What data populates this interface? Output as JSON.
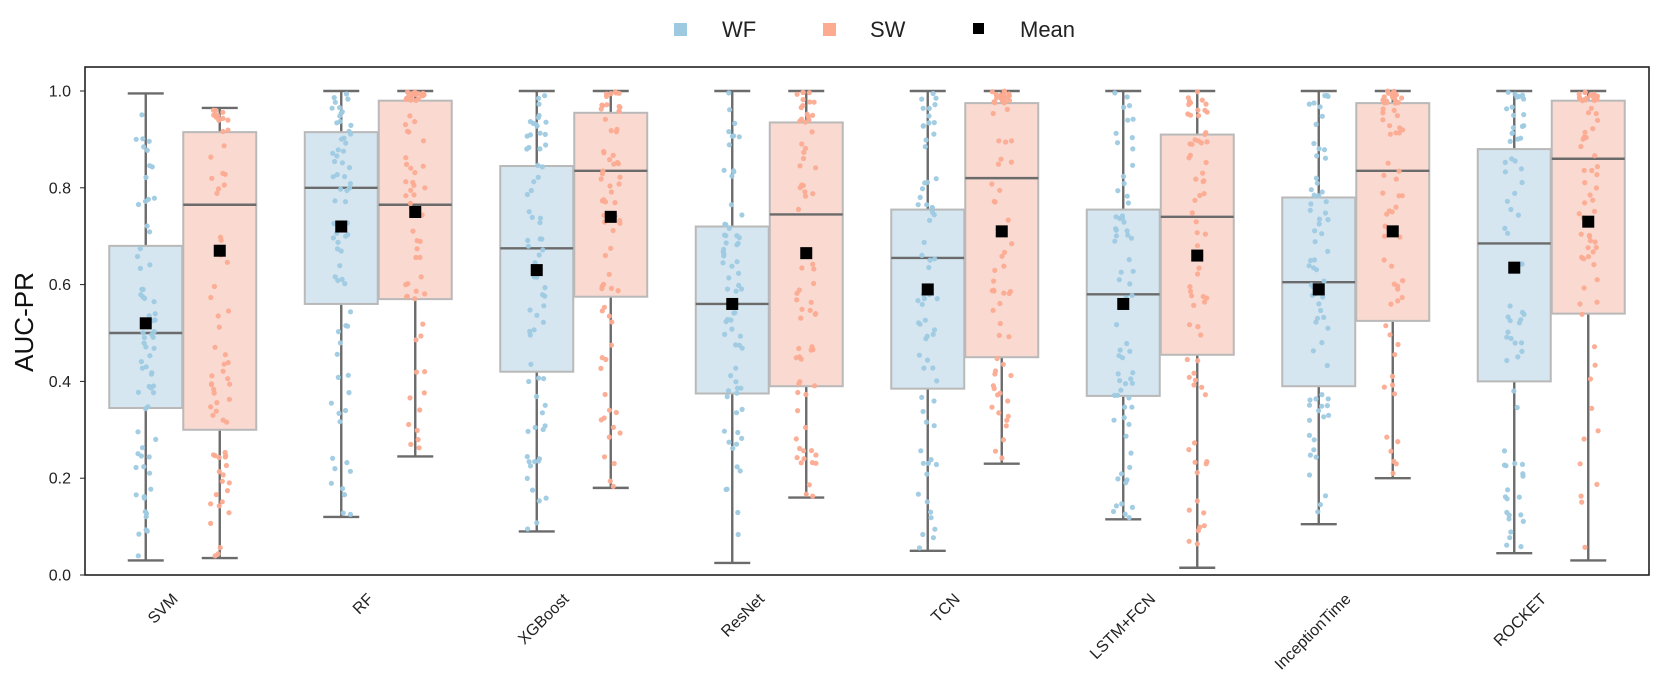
{
  "chart_data": {
    "type": "boxplot",
    "title": "",
    "xlabel": "",
    "ylabel": "AUC-PR",
    "ylim": [
      0.0,
      1.05
    ],
    "yticks": [
      "0.0",
      "0.2",
      "0.4",
      "0.6",
      "0.8",
      "1.0"
    ],
    "grid": false,
    "legend": {
      "position": "top-center",
      "entries": [
        {
          "name": "WF",
          "color": "#9ecae1"
        },
        {
          "name": "SW",
          "color": "#fcab91"
        },
        {
          "name": "Mean",
          "color": "#000000"
        }
      ]
    },
    "categories": [
      "SVM",
      "RF",
      "XGBoost",
      "ResNet",
      "TCN",
      "LSTM+FCN",
      "InceptionTime",
      "ROCKET"
    ],
    "series": [
      {
        "name": "WF",
        "color": "#9ecae1",
        "boxes": [
          {
            "min": 0.03,
            "q1": 0.345,
            "median": 0.5,
            "q3": 0.68,
            "max": 0.995,
            "mean": 0.52
          },
          {
            "min": 0.12,
            "q1": 0.56,
            "median": 0.8,
            "q3": 0.915,
            "max": 1.0,
            "mean": 0.72
          },
          {
            "min": 0.09,
            "q1": 0.42,
            "median": 0.675,
            "q3": 0.845,
            "max": 1.0,
            "mean": 0.63
          },
          {
            "min": 0.025,
            "q1": 0.375,
            "median": 0.56,
            "q3": 0.72,
            "max": 1.0,
            "mean": 0.56
          },
          {
            "min": 0.05,
            "q1": 0.385,
            "median": 0.655,
            "q3": 0.755,
            "max": 1.0,
            "mean": 0.59
          },
          {
            "min": 0.115,
            "q1": 0.37,
            "median": 0.58,
            "q3": 0.755,
            "max": 1.0,
            "mean": 0.56
          },
          {
            "min": 0.105,
            "q1": 0.39,
            "median": 0.605,
            "q3": 0.78,
            "max": 1.0,
            "mean": 0.59
          },
          {
            "min": 0.045,
            "q1": 0.4,
            "median": 0.685,
            "q3": 0.88,
            "max": 1.0,
            "mean": 0.635
          }
        ]
      },
      {
        "name": "SW",
        "color": "#fcab91",
        "boxes": [
          {
            "min": 0.035,
            "q1": 0.3,
            "median": 0.765,
            "q3": 0.915,
            "max": 0.965,
            "mean": 0.67
          },
          {
            "min": 0.245,
            "q1": 0.57,
            "median": 0.765,
            "q3": 0.98,
            "max": 1.0,
            "mean": 0.75
          },
          {
            "min": 0.18,
            "q1": 0.575,
            "median": 0.835,
            "q3": 0.955,
            "max": 1.0,
            "mean": 0.74
          },
          {
            "min": 0.16,
            "q1": 0.39,
            "median": 0.745,
            "q3": 0.935,
            "max": 1.0,
            "mean": 0.665
          },
          {
            "min": 0.23,
            "q1": 0.45,
            "median": 0.82,
            "q3": 0.975,
            "max": 1.0,
            "mean": 0.71
          },
          {
            "min": 0.015,
            "q1": 0.455,
            "median": 0.74,
            "q3": 0.91,
            "max": 1.0,
            "mean": 0.66
          },
          {
            "min": 0.2,
            "q1": 0.525,
            "median": 0.835,
            "q3": 0.975,
            "max": 1.0,
            "mean": 0.71
          },
          {
            "min": 0.03,
            "q1": 0.54,
            "median": 0.86,
            "q3": 0.98,
            "max": 1.0,
            "mean": 0.73
          }
        ]
      }
    ]
  }
}
